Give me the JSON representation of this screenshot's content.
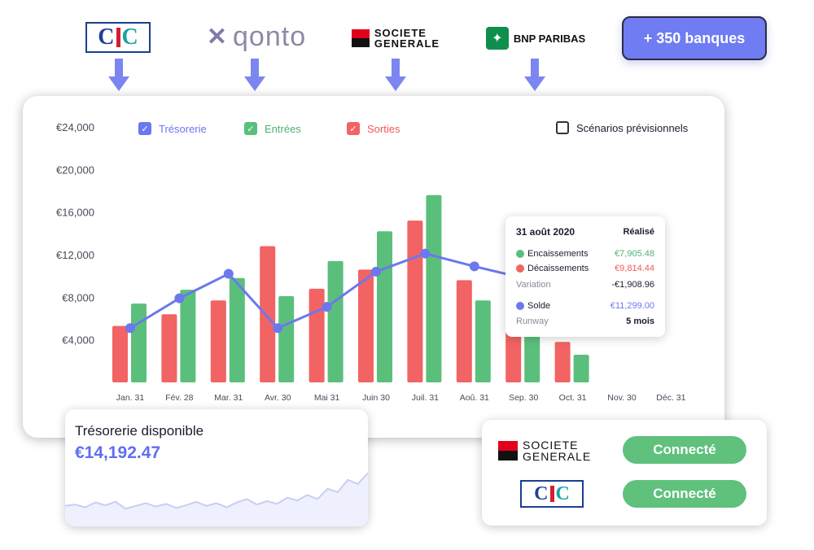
{
  "logos": {
    "cic": {
      "c1": "C",
      "i": "I",
      "c2": "C"
    },
    "qonto_word": "qonto",
    "sg_line1": "SOCIETE",
    "sg_line2": "GENERALE",
    "bnp": "BNP PARIBAS"
  },
  "banks_button": "+ 350 banques",
  "legend": {
    "tresorerie": "Trésorerie",
    "entrees": "Entrées",
    "sorties": "Sorties",
    "scenarios": "Scénarios prévisionnels"
  },
  "colors": {
    "tresorerie": "#6b78ee",
    "entrees": "#5bbf7c",
    "sorties": "#f26363",
    "accent": "#6f7cf2"
  },
  "chart_data": {
    "type": "bar",
    "categories": [
      "Jan. 31",
      "Fév. 28",
      "Mar. 31",
      "Avr. 30",
      "Mai 31",
      "Juin 30",
      "Juil. 31",
      "Aoû. 31",
      "Sep. 30",
      "Oct. 31",
      "Nov. 30",
      "Déc. 31"
    ],
    "y_ticks": [
      "€24,000",
      "€20,000",
      "€16,000",
      "€12,000",
      "€8,000",
      "€4,000"
    ],
    "ylim": [
      0,
      24000
    ],
    "series": [
      {
        "name": "Sorties",
        "type": "bar",
        "values": [
          5300,
          6400,
          7700,
          12800,
          8800,
          10600,
          15200,
          9600,
          7400,
          3800,
          null,
          null
        ]
      },
      {
        "name": "Entrées",
        "type": "bar",
        "values": [
          7400,
          8700,
          9800,
          8100,
          11400,
          14200,
          17600,
          7700,
          5000,
          2600,
          null,
          null
        ]
      },
      {
        "name": "Trésorerie",
        "type": "line",
        "values": [
          5100,
          7900,
          10200,
          5100,
          7100,
          10400,
          12100,
          10900,
          9800,
          null,
          null,
          null
        ]
      }
    ],
    "grid": false,
    "legend": "top-left"
  },
  "tooltip": {
    "date": "31 août 2020",
    "status": "Réalisé",
    "encaissements_label": "Encaissements",
    "encaissements_value": "€7,905.48",
    "decaissements_label": "Décaissements",
    "decaissements_value": "€9,814.44",
    "variation_label": "Variation",
    "variation_value": "-€1,908.96",
    "solde_label": "Solde",
    "solde_value": "€11,299.00",
    "runway_label": "Runway",
    "runway_value": "5 mois"
  },
  "treasury": {
    "title": "Trésorerie disponible",
    "value": "€14,192.47",
    "sparkline": [
      0.3,
      0.32,
      0.28,
      0.35,
      0.31,
      0.36,
      0.26,
      0.3,
      0.34,
      0.29,
      0.33,
      0.27,
      0.31,
      0.36,
      0.3,
      0.34,
      0.28,
      0.35,
      0.4,
      0.32,
      0.37,
      0.33,
      0.42,
      0.38,
      0.46,
      0.4,
      0.55,
      0.5,
      0.68,
      0.62,
      0.78
    ]
  },
  "connections": {
    "sg_line1": "SOCIETE",
    "sg_line2": "GENERALE",
    "button1": "Connecté",
    "button2": "Connecté"
  }
}
